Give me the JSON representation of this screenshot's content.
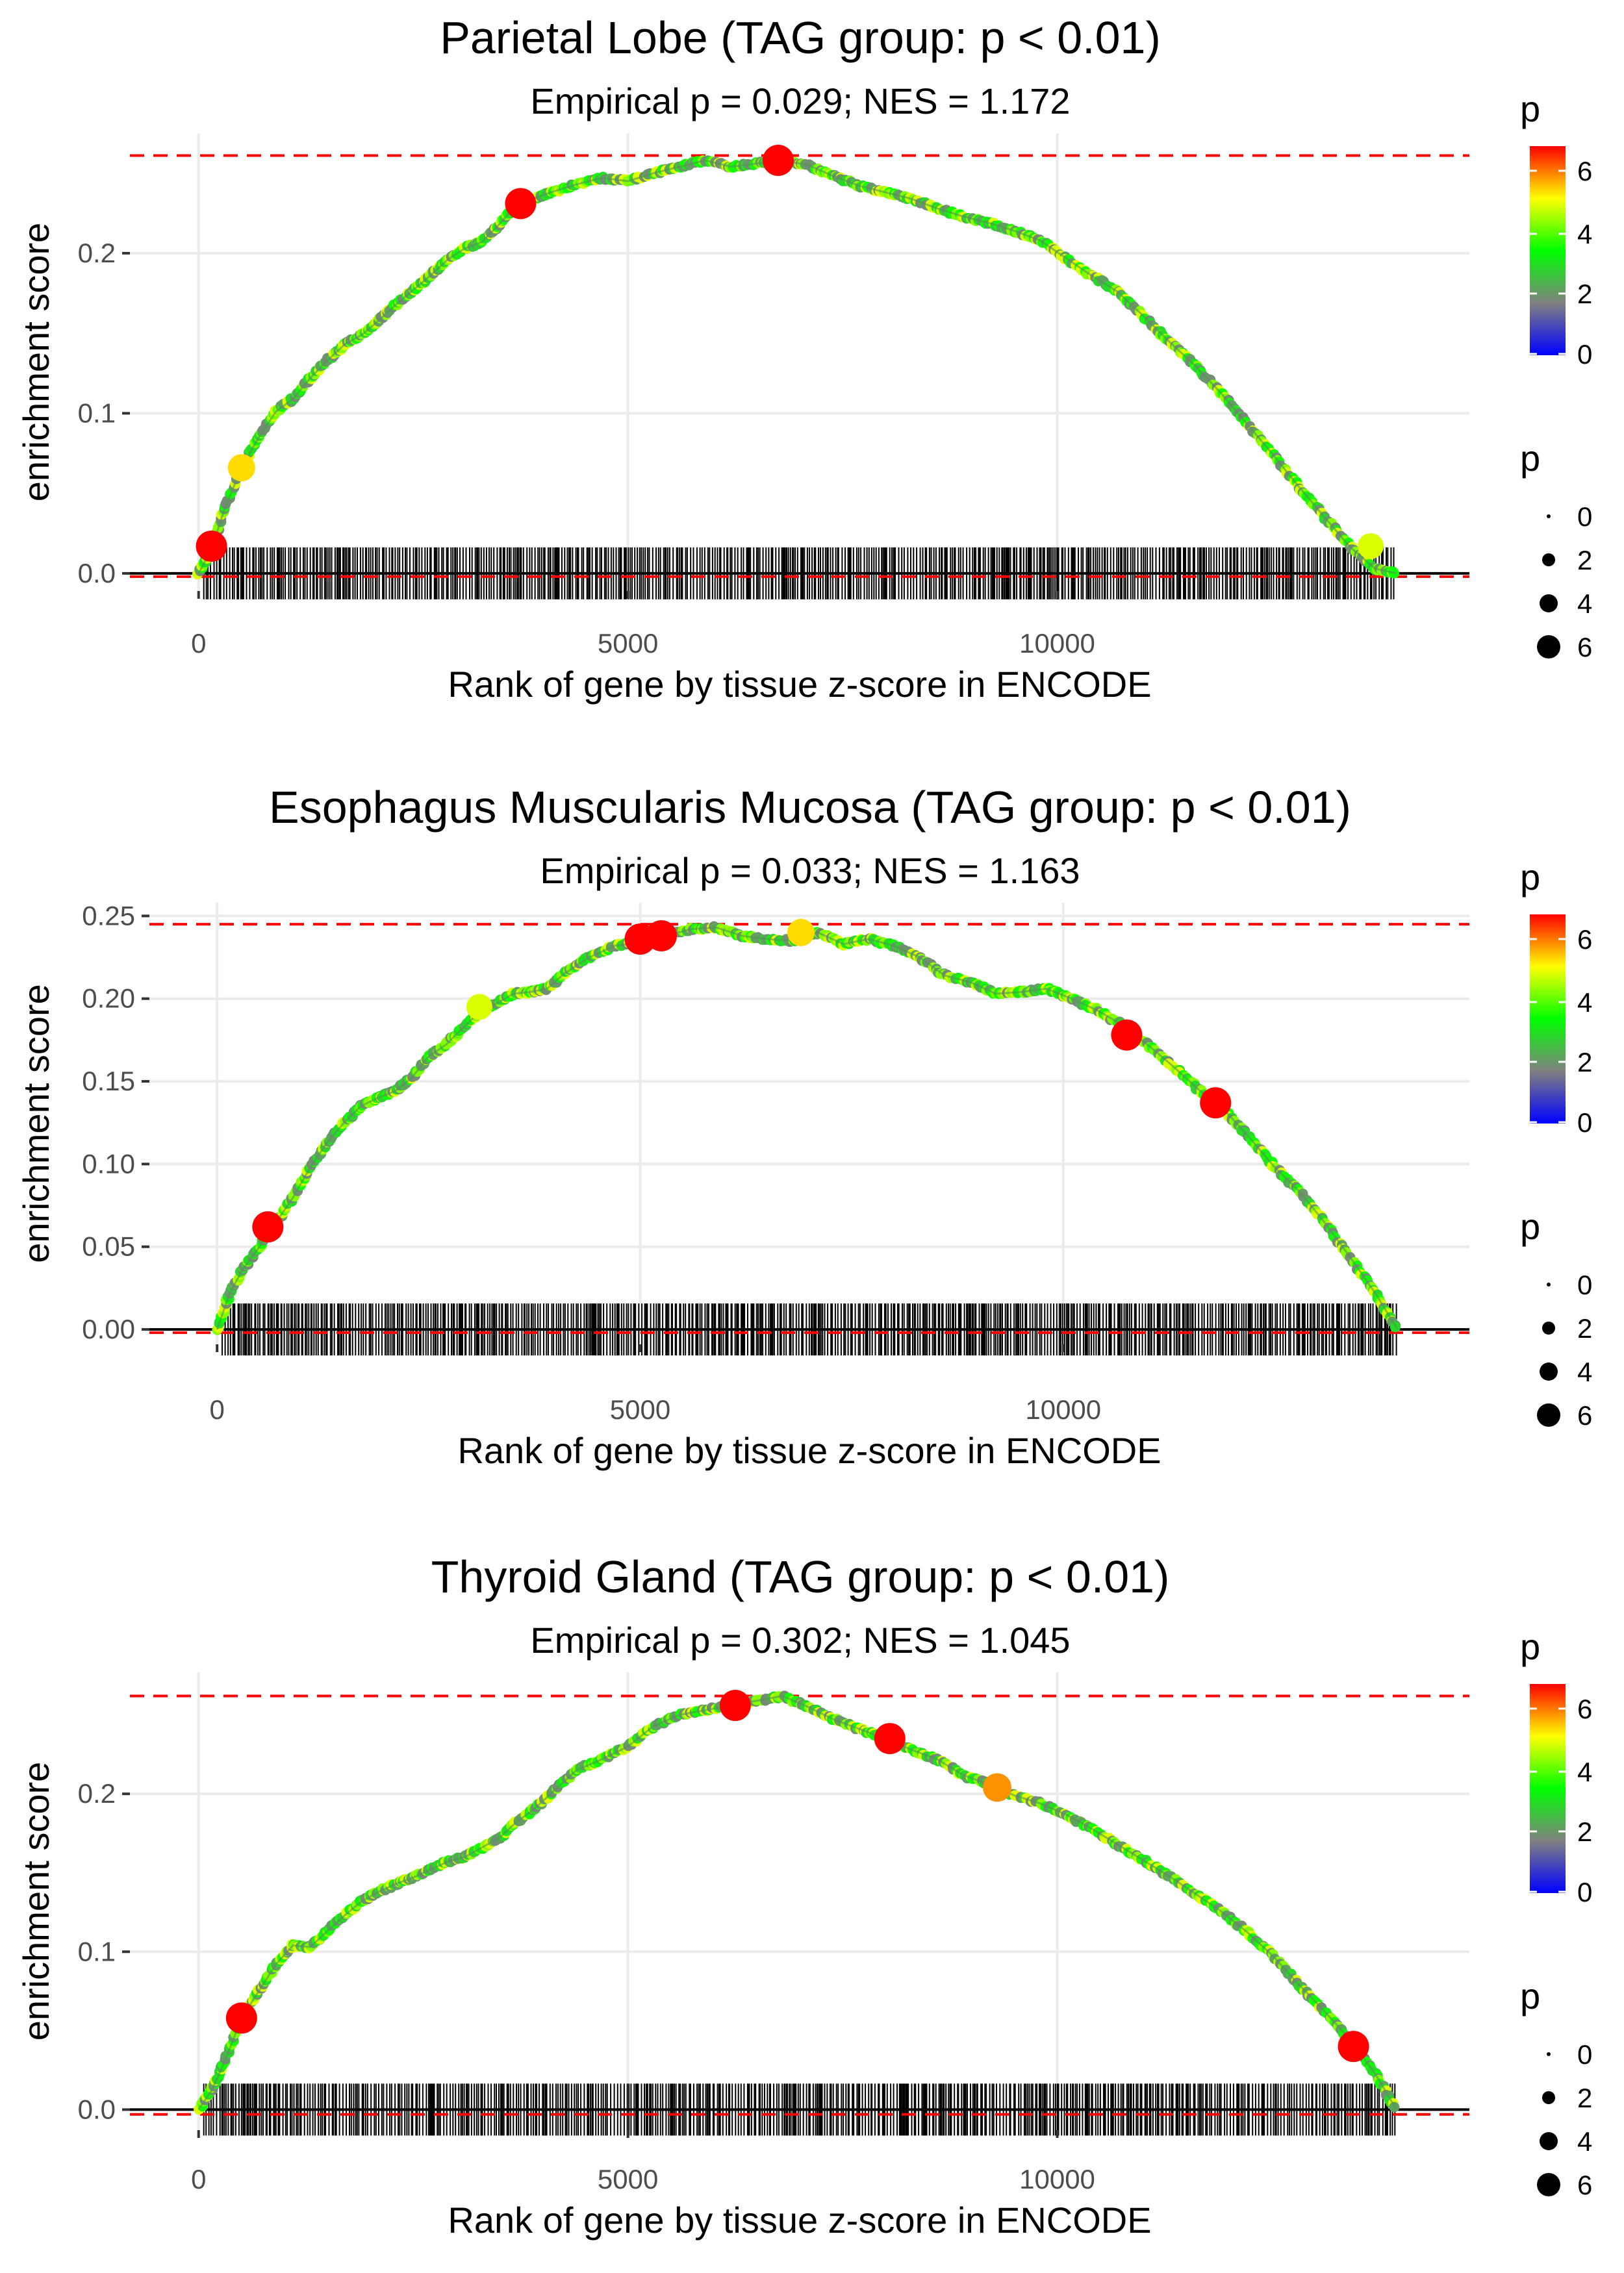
{
  "chart_data": [
    {
      "type": "line",
      "title": "Parietal Lobe (TAG group: p < 0.01)",
      "subtitle": "Empirical p = 0.029; NES = 1.172",
      "xlabel": "Rank of gene by tissue z-score in ENCODE",
      "ylabel": "enrichment score",
      "xlim": [
        -800,
        14800
      ],
      "ylim": [
        -0.011,
        0.275
      ],
      "xticks": [
        0,
        5000,
        10000
      ],
      "xtick_labels": [
        "0",
        "5000",
        "10000"
      ],
      "yticks": [
        0.0,
        0.1,
        0.2
      ],
      "ytick_labels": [
        "0.0",
        "0.1",
        "0.2"
      ],
      "max_es": 0.261,
      "min_es": -0.002,
      "rug_range": [
        60,
        13950
      ],
      "curve_x": [
        0,
        150,
        300,
        500,
        700,
        900,
        1100,
        1300,
        1500,
        1700,
        1900,
        2100,
        2300,
        2500,
        2700,
        2900,
        3100,
        3300,
        3500,
        3700,
        3900,
        4100,
        4400,
        4700,
        5000,
        5300,
        5600,
        5900,
        6200,
        6500,
        6800,
        7100,
        7400,
        7700,
        8000,
        8300,
        8600,
        8900,
        9200,
        9500,
        9800,
        10100,
        10400,
        10700,
        11000,
        11300,
        11600,
        11900,
        12200,
        12500,
        12800,
        13100,
        13400,
        13700,
        13950
      ],
      "curve_y": [
        0.0,
        0.015,
        0.04,
        0.066,
        0.085,
        0.101,
        0.109,
        0.122,
        0.133,
        0.143,
        0.149,
        0.158,
        0.168,
        0.177,
        0.186,
        0.196,
        0.203,
        0.207,
        0.218,
        0.23,
        0.234,
        0.238,
        0.243,
        0.247,
        0.245,
        0.25,
        0.254,
        0.258,
        0.254,
        0.256,
        0.258,
        0.255,
        0.248,
        0.242,
        0.238,
        0.234,
        0.228,
        0.223,
        0.219,
        0.214,
        0.208,
        0.197,
        0.186,
        0.176,
        0.161,
        0.145,
        0.13,
        0.113,
        0.094,
        0.075,
        0.055,
        0.036,
        0.017,
        0.003,
        0.0
      ],
      "highlight_points": [
        {
          "x": 150,
          "y": 0.017,
          "p": 7
        },
        {
          "x": 500,
          "y": 0.066,
          "p": 5.5
        },
        {
          "x": 3750,
          "y": 0.231,
          "p": 7
        },
        {
          "x": 6750,
          "y": 0.258,
          "p": 7
        },
        {
          "x": 13650,
          "y": 0.017,
          "p": 5
        }
      ]
    },
    {
      "type": "line",
      "title": "Esophagus Muscularis Mucosa (TAG group: p < 0.01)",
      "subtitle": "Empirical p = 0.033; NES = 1.163",
      "xlabel": "Rank of gene by tissue z-score in ENCODE",
      "ylabel": "enrichment score",
      "xlim": [
        -800,
        14800
      ],
      "ylim": [
        -0.009,
        0.258
      ],
      "xticks": [
        0,
        5000,
        10000
      ],
      "xtick_labels": [
        "0",
        "5000",
        "10000"
      ],
      "yticks": [
        0.0,
        0.05,
        0.1,
        0.15,
        0.2,
        0.25
      ],
      "ytick_labels": [
        "0.00",
        "0.05",
        "0.10",
        "0.15",
        "0.20",
        "0.25"
      ],
      "max_es": 0.245,
      "min_es": -0.002,
      "rug_range": [
        60,
        13950
      ],
      "curve_x": [
        0,
        150,
        300,
        500,
        700,
        900,
        1100,
        1300,
        1500,
        1700,
        1900,
        2100,
        2300,
        2500,
        2700,
        2900,
        3100,
        3300,
        3500,
        3700,
        3900,
        4100,
        4400,
        4700,
        5000,
        5300,
        5600,
        5900,
        6200,
        6500,
        6800,
        7100,
        7400,
        7700,
        8000,
        8300,
        8600,
        8900,
        9200,
        9500,
        9800,
        10100,
        10400,
        10700,
        11000,
        11300,
        11600,
        11900,
        12200,
        12500,
        12800,
        13100,
        13400,
        13700,
        13950
      ],
      "curve_y": [
        0.0,
        0.022,
        0.036,
        0.05,
        0.065,
        0.08,
        0.098,
        0.113,
        0.125,
        0.135,
        0.14,
        0.144,
        0.152,
        0.165,
        0.172,
        0.182,
        0.192,
        0.197,
        0.203,
        0.204,
        0.206,
        0.215,
        0.225,
        0.232,
        0.234,
        0.238,
        0.242,
        0.243,
        0.238,
        0.236,
        0.235,
        0.24,
        0.233,
        0.236,
        0.232,
        0.225,
        0.214,
        0.21,
        0.203,
        0.204,
        0.206,
        0.2,
        0.193,
        0.184,
        0.172,
        0.159,
        0.145,
        0.133,
        0.116,
        0.098,
        0.083,
        0.064,
        0.043,
        0.021,
        0.0
      ],
      "highlight_points": [
        {
          "x": 600,
          "y": 0.062,
          "p": 7
        },
        {
          "x": 3100,
          "y": 0.195,
          "p": 5
        },
        {
          "x": 5000,
          "y": 0.236,
          "p": 7
        },
        {
          "x": 5250,
          "y": 0.238,
          "p": 7
        },
        {
          "x": 6900,
          "y": 0.24,
          "p": 5.5
        },
        {
          "x": 10750,
          "y": 0.178,
          "p": 7
        },
        {
          "x": 11800,
          "y": 0.137,
          "p": 7
        }
      ]
    },
    {
      "type": "line",
      "title": "Thyroid Gland (TAG group: p < 0.01)",
      "subtitle": "Empirical p = 0.302; NES = 1.045",
      "xlabel": "Rank of gene by tissue z-score in ENCODE",
      "ylabel": "enrichment score",
      "xlim": [
        -800,
        14800
      ],
      "ylim": [
        -0.013,
        0.277
      ],
      "xticks": [
        0,
        5000,
        10000
      ],
      "xtick_labels": [
        "0",
        "5000",
        "10000"
      ],
      "yticks": [
        0.0,
        0.1,
        0.2
      ],
      "ytick_labels": [
        "0.0",
        "0.1",
        "0.2"
      ],
      "max_es": 0.262,
      "min_es": -0.003,
      "rug_range": [
        60,
        13950
      ],
      "curve_x": [
        0,
        150,
        300,
        500,
        700,
        900,
        1100,
        1300,
        1500,
        1700,
        1900,
        2100,
        2300,
        2500,
        2700,
        2900,
        3100,
        3300,
        3500,
        3700,
        3900,
        4100,
        4400,
        4700,
        5000,
        5300,
        5600,
        5900,
        6200,
        6500,
        6800,
        7100,
        7400,
        7700,
        8000,
        8300,
        8600,
        8900,
        9200,
        9500,
        9800,
        10100,
        10400,
        10700,
        11000,
        11300,
        11600,
        11900,
        12200,
        12500,
        12800,
        13100,
        13400,
        13700,
        13950
      ],
      "curve_y": [
        0.0,
        0.012,
        0.03,
        0.058,
        0.075,
        0.092,
        0.104,
        0.103,
        0.113,
        0.123,
        0.132,
        0.138,
        0.143,
        0.147,
        0.152,
        0.157,
        0.16,
        0.166,
        0.172,
        0.182,
        0.19,
        0.2,
        0.215,
        0.222,
        0.23,
        0.243,
        0.25,
        0.253,
        0.256,
        0.259,
        0.262,
        0.255,
        0.247,
        0.241,
        0.235,
        0.228,
        0.222,
        0.212,
        0.206,
        0.199,
        0.194,
        0.187,
        0.178,
        0.168,
        0.158,
        0.148,
        0.137,
        0.126,
        0.113,
        0.098,
        0.08,
        0.063,
        0.045,
        0.023,
        0.0
      ],
      "highlight_points": [
        {
          "x": 500,
          "y": 0.058,
          "p": 7
        },
        {
          "x": 6250,
          "y": 0.256,
          "p": 7
        },
        {
          "x": 8050,
          "y": 0.235,
          "p": 7
        },
        {
          "x": 9300,
          "y": 0.204,
          "p": 6
        },
        {
          "x": 13450,
          "y": 0.04,
          "p": 7
        }
      ]
    }
  ],
  "legend": {
    "color_title": "p",
    "color_labels": [
      "6",
      "4",
      "2",
      "0"
    ],
    "size_title": "p",
    "size_labels": [
      "0",
      "2",
      "4",
      "6"
    ],
    "size_values": [
      0,
      2,
      4,
      6
    ],
    "gradient_stops": [
      "#ff0000",
      "#ffff00",
      "#00ff00",
      "#808080",
      "#0000ff"
    ]
  },
  "colors": {
    "threshold_line": "#ff0000",
    "zero_line": "#000000",
    "grid": "#ebebeb",
    "rug": "#000000"
  }
}
